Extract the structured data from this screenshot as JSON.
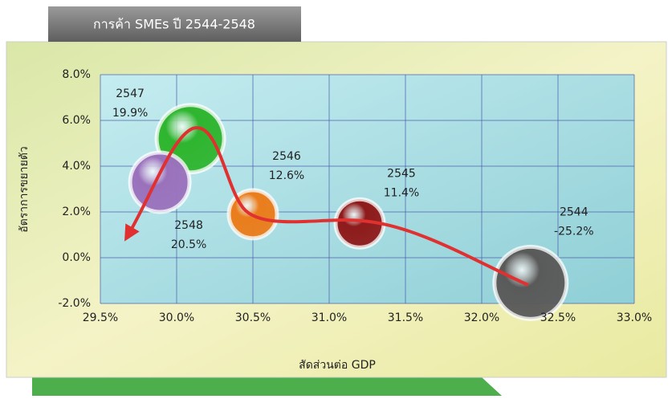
{
  "chart_data": {
    "type": "bubble",
    "title": "การค้า SMEs ปี 2544-2548",
    "xlabel": "สัดส่วนต่อ GDP",
    "ylabel": "อัตราการขยายตัว",
    "x": [
      32.32,
      31.2,
      30.5,
      30.09,
      29.89
    ],
    "values": [
      -1.1,
      1.5,
      1.9,
      5.2,
      3.3
    ],
    "sizes": [
      45,
      30,
      30,
      42,
      37
    ],
    "colors": [
      "#5a5a5a",
      "#8e1b1b",
      "#ea7d1c",
      "#2fb52f",
      "#9a72bc"
    ],
    "point_labels": [
      "2544",
      "2545",
      "2546",
      "2547",
      "2548"
    ],
    "annotations": [
      "-25.2%",
      "11.4%",
      "12.6%",
      "19.9%",
      "20.5%"
    ],
    "xlim": [
      29.5,
      33.0
    ],
    "xticks": [
      {
        "value": 29.5,
        "label": "29.5%"
      },
      {
        "value": 30.0,
        "label": "30.0%"
      },
      {
        "value": 30.5,
        "label": "30.5%"
      },
      {
        "value": 31.0,
        "label": "31.0%"
      },
      {
        "value": 31.5,
        "label": "31.5%"
      },
      {
        "value": 32.0,
        "label": "32.0%"
      },
      {
        "value": 32.5,
        "label": "32.5%"
      },
      {
        "value": 33.0,
        "label": "33.0%"
      }
    ],
    "ylim": [
      -2.0,
      8.0
    ],
    "yticks": [
      {
        "value": -2.0,
        "label": "-2.0%"
      },
      {
        "value": 0.0,
        "label": "0.0%"
      },
      {
        "value": 2.0,
        "label": "2.0%"
      },
      {
        "value": 4.0,
        "label": "4.0%"
      },
      {
        "value": 6.0,
        "label": "6.0%"
      },
      {
        "value": 8.0,
        "label": "8.0%"
      }
    ],
    "grid": true
  }
}
